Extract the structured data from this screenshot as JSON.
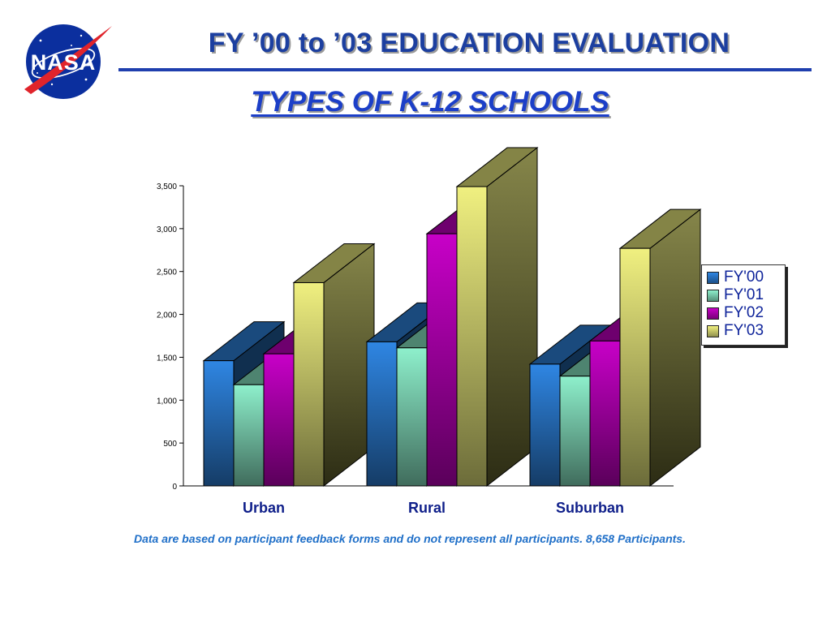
{
  "header": {
    "title": "FY ’00 to ’03 EDUCATION EVALUATION",
    "logo_text": "NASA"
  },
  "chart_data": {
    "type": "bar",
    "title": "TYPES OF K-12 SCHOOLS",
    "xlabel": "",
    "ylabel": "",
    "categories": [
      "Urban",
      "Rural",
      "Suburban"
    ],
    "series": [
      {
        "name": "FY'00",
        "values": [
          1460,
          1680,
          1420
        ],
        "color": "#2f86e3"
      },
      {
        "name": "FY'01",
        "values": [
          1180,
          1610,
          1280
        ],
        "color": "#8ef0cc"
      },
      {
        "name": "FY'02",
        "values": [
          1540,
          2940,
          1690
        ],
        "color": "#c800c8"
      },
      {
        "name": "FY'03",
        "values": [
          2370,
          3490,
          2770
        ],
        "color": "#f0f080"
      }
    ],
    "ylim": [
      0,
      3500
    ],
    "yticks": [
      0,
      500,
      1000,
      1500,
      2000,
      2500,
      3000,
      3500
    ],
    "ytick_labels": [
      "0",
      "500",
      "1,000",
      "1,500",
      "2,000",
      "2,500",
      "3,000",
      "3,500"
    ],
    "legend_position": "right",
    "grid": false,
    "style": "3d"
  },
  "footnote": "Data are based on participant feedback forms and do not represent all participants.  8,658 Participants."
}
